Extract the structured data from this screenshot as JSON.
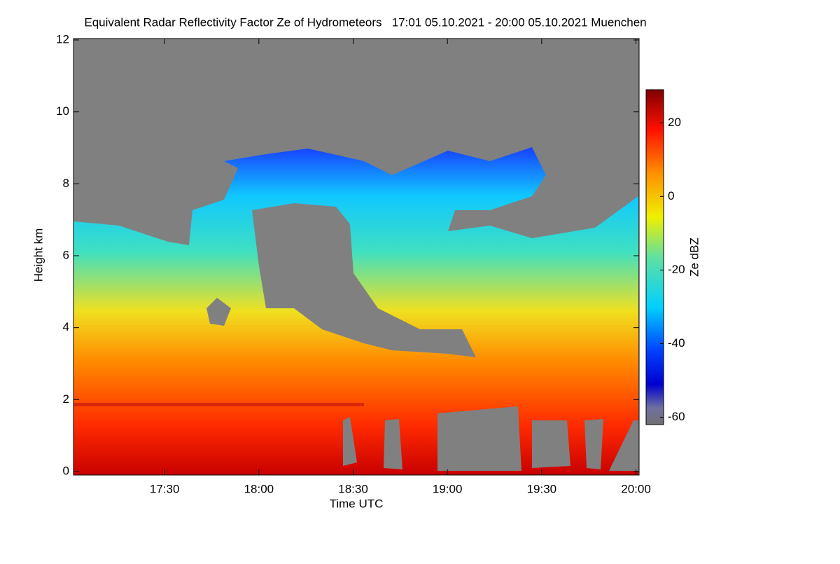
{
  "chart_data": {
    "type": "heatmap",
    "title": "Equivalent Radar Reflectivity Factor Ze of Hydrometeors   17:01 05.10.2021 - 20:00 05.10.2021 Muenchen",
    "x_label": "Time UTC",
    "y_label": "Height km",
    "xlim": [
      1021,
      1201
    ],
    "xticks": [
      {
        "value": 1050,
        "label": "17:30"
      },
      {
        "value": 1080,
        "label": "18:00"
      },
      {
        "value": 1110,
        "label": "18:30"
      },
      {
        "value": 1140,
        "label": "19:00"
      },
      {
        "value": 1170,
        "label": "19:30"
      },
      {
        "value": 1200,
        "label": "20:00"
      }
    ],
    "ylim": [
      0,
      12
    ],
    "yticks": [
      0,
      2,
      4,
      6,
      8,
      10,
      12
    ],
    "colorbar": {
      "label": "Ze dBZ",
      "zlim": [
        -62,
        29
      ],
      "ticks": [
        -60,
        -40,
        -20,
        0,
        20
      ]
    }
  }
}
